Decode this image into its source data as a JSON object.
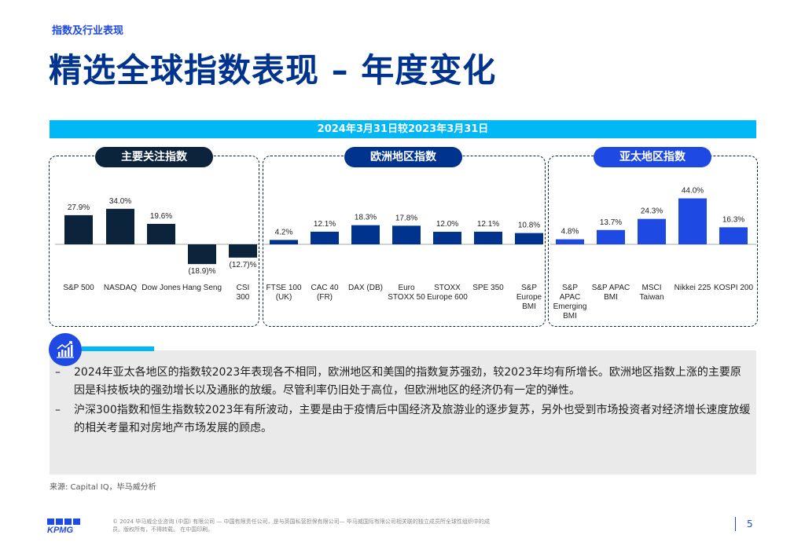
{
  "header": {
    "section_label": "指数及行业表现",
    "title": "精选全球指数表现 – 年度变化"
  },
  "date_banner": "2024年3月31日较2023年3月31日",
  "groups": [
    {
      "label": "主要关注指数",
      "color": "#0c233c"
    },
    {
      "label": "欧洲地区指数",
      "color": "#00338d"
    },
    {
      "label": "亚太地区指数",
      "color": "#1e49e2"
    }
  ],
  "chart_data": {
    "type": "bar",
    "title": "2024年3月31日较2023年3月31日",
    "ylabel": "",
    "ylim": [
      -20,
      45
    ],
    "grid": false,
    "series": [
      {
        "name": "主要关注指数",
        "color": "#0c233c",
        "categories": [
          "S&P 500",
          "NASDAQ",
          "Dow Jones",
          "Hang Seng",
          "CSI 300"
        ],
        "values": [
          27.9,
          34.0,
          19.6,
          -18.9,
          -12.7
        ],
        "labels": [
          "27.9%",
          "34.0%",
          "19.6%",
          "(18.9)%",
          "(12.7)%"
        ]
      },
      {
        "name": "欧洲地区指数",
        "color": "#00338d",
        "categories": [
          "FTSE 100 (UK)",
          "CAC 40 (FR)",
          "DAX (DB)",
          "Euro STOXX 50",
          "STOXX Europe 600",
          "SPE 350",
          "S&P Europe BMI"
        ],
        "values": [
          4.2,
          12.1,
          18.3,
          17.8,
          12.0,
          12.1,
          10.8
        ],
        "labels": [
          "4.2%",
          "12.1%",
          "18.3%",
          "17.8%",
          "12.0%",
          "12.1%",
          "10.8%"
        ]
      },
      {
        "name": "亚太地区指数",
        "color": "#1e49e2",
        "categories": [
          "S&P APAC Emerging BMI",
          "S&P APAC BMI",
          "MSCI Taiwan",
          "Nikkei 225",
          "KOSPI 200"
        ],
        "values": [
          4.8,
          13.7,
          24.3,
          44.0,
          16.3
        ],
        "labels": [
          "4.8%",
          "13.7%",
          "24.3%",
          "44.0%",
          "16.3%"
        ]
      }
    ],
    "category_label_lines": [
      [
        "S&P 500"
      ],
      [
        "NASDAQ"
      ],
      [
        "Dow Jones"
      ],
      [
        "Hang Seng"
      ],
      [
        "CSI",
        "300"
      ],
      [
        "FTSE 100",
        "(UK)"
      ],
      [
        "CAC 40",
        "(FR)"
      ],
      [
        "DAX (DB)"
      ],
      [
        "Euro",
        "STOXX 50"
      ],
      [
        "STOXX",
        "Europe 600"
      ],
      [
        "SPE 350"
      ],
      [
        "S&P",
        "Europe",
        "BMI"
      ],
      [
        "S&P",
        "APAC",
        "Emerging",
        "BMI"
      ],
      [
        "S&P APAC",
        "BMI"
      ],
      [
        "MSCI",
        "Taiwan"
      ],
      [
        "Nikkei 225"
      ],
      [
        "KOSPI 200"
      ]
    ]
  },
  "notes": [
    "2024年亚太各地区的指数较2023年表现各不相同，欧洲地区和美国的指数复苏强劲，较2023年均有所增长。欧洲地区指数上涨的主要原因是科技板块的强劲增长以及通胀的放缓。尽管利率仍旧处于高位，但欧洲地区的经济仍有一定的弹性。",
    "沪深300指数和恒生指数较2023年有所波动，主要是由于疫情后中国经济及旅游业的逐步复苏，另外也受到市场投资者对经济增长速度放缓的相关考量和对房地产市场发展的顾虑。"
  ],
  "note_dash": "–",
  "source": "来源: Capital IQ，毕马威分析",
  "footer": {
    "logo": "KPMG",
    "copyright": "© 2024 毕马威企业咨询 (中国) 有限公司 — 中国有限责任公司，是与英国私营担保有限公司— 毕马威国际有限公司相关联的独立成员所全球性组织中的成员。版权所有，不得转载。 在中国印刷。",
    "page_number": "5"
  },
  "icons": {
    "note": "chart-growth-icon"
  }
}
